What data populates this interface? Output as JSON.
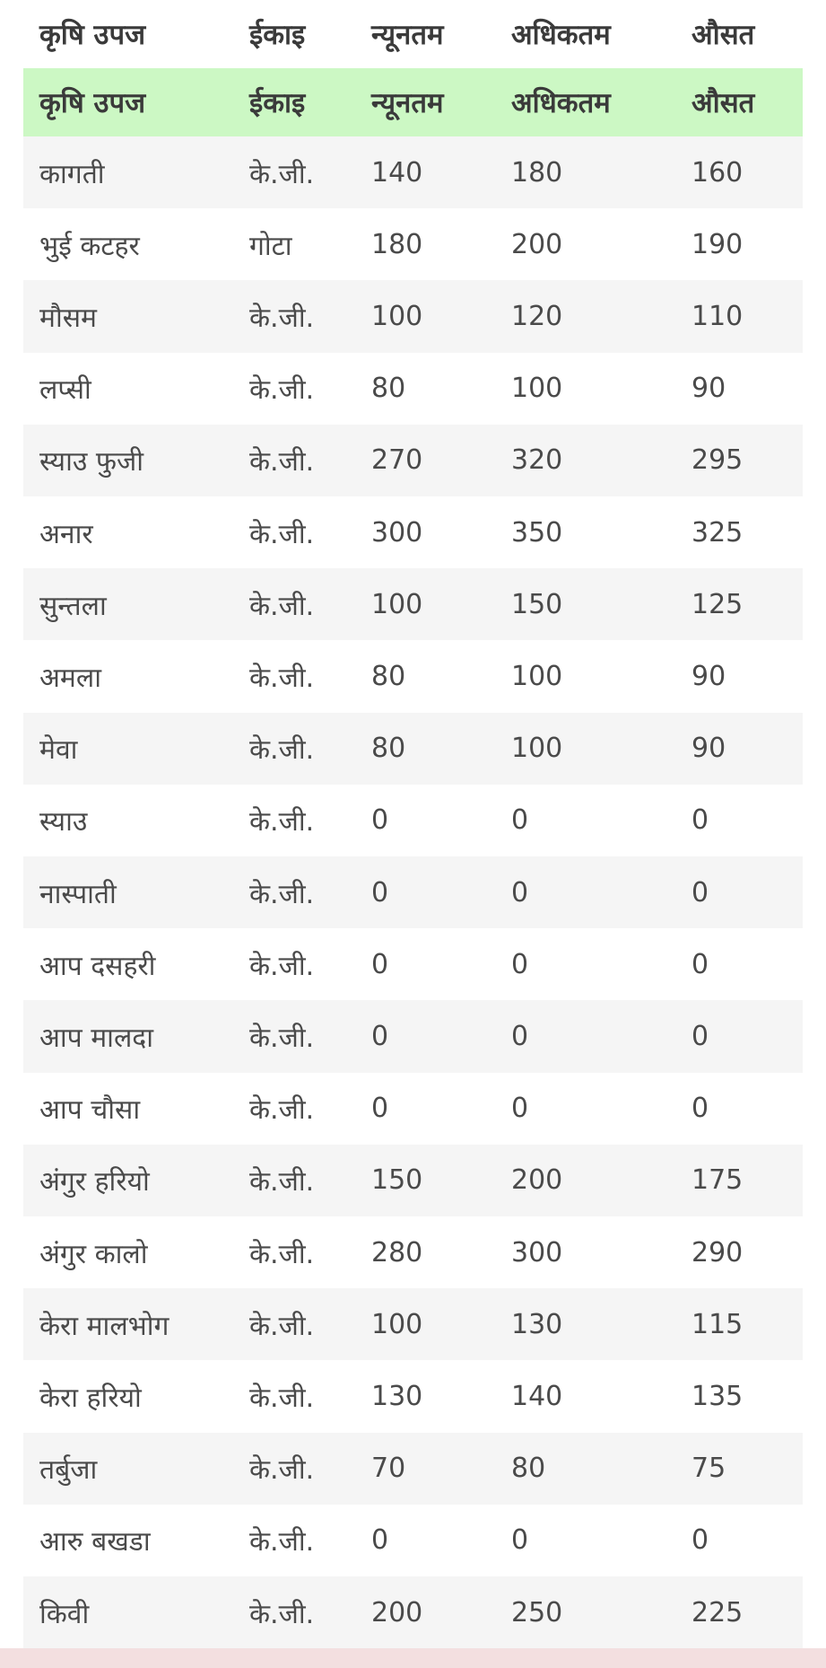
{
  "headers": [
    "कृषि उपज",
    "ईकाइ",
    "न्यूनतम",
    "अधिकतम",
    "औसत"
  ],
  "rows": [
    [
      "कागती",
      "के.जी.",
      "140",
      "180",
      "160"
    ],
    [
      "भुई कटहर",
      "गोटा",
      "180",
      "200",
      "190"
    ],
    [
      "मौसम",
      "के.जी.",
      "100",
      "120",
      "110"
    ],
    [
      "लप्सी",
      "के.जी.",
      "80",
      "100",
      "90"
    ],
    [
      "स्याउ फुजी",
      "के.जी.",
      "270",
      "320",
      "295"
    ],
    [
      "अनार",
      "के.जी.",
      "300",
      "350",
      "325"
    ],
    [
      "सुन्तला",
      "के.जी.",
      "100",
      "150",
      "125"
    ],
    [
      "अमला",
      "के.जी.",
      "80",
      "100",
      "90"
    ],
    [
      "मेवा",
      "के.जी.",
      "80",
      "100",
      "90"
    ],
    [
      "स्याउ",
      "के.जी.",
      "0",
      "0",
      "0"
    ],
    [
      "नास्पाती",
      "के.जी.",
      "0",
      "0",
      "0"
    ],
    [
      "आप दसहरी",
      "के.जी.",
      "0",
      "0",
      "0"
    ],
    [
      "आप मालदा",
      "के.जी.",
      "0",
      "0",
      "0"
    ],
    [
      "आप चौसा",
      "के.जी.",
      "0",
      "0",
      "0"
    ],
    [
      "अंगुर हरियो",
      "के.जी.",
      "150",
      "200",
      "175"
    ],
    [
      "अंगुर कालो",
      "के.जी.",
      "280",
      "300",
      "290"
    ],
    [
      "केरा मालभोग",
      "के.जी.",
      "100",
      "130",
      "115"
    ],
    [
      "केरा हरियो",
      "के.जी.",
      "130",
      "140",
      "135"
    ],
    [
      "तर्बुजा",
      "के.जी.",
      "70",
      "80",
      "75"
    ],
    [
      "आरु बखडा",
      "के.जी.",
      "0",
      "0",
      "0"
    ],
    [
      "किवी",
      "के.जी.",
      "200",
      "250",
      "225"
    ]
  ],
  "colors": {
    "header_bg": "#ccf8c4",
    "stripe_bg": "#f5f5f5",
    "footer_bg": "#f3dfe0"
  }
}
